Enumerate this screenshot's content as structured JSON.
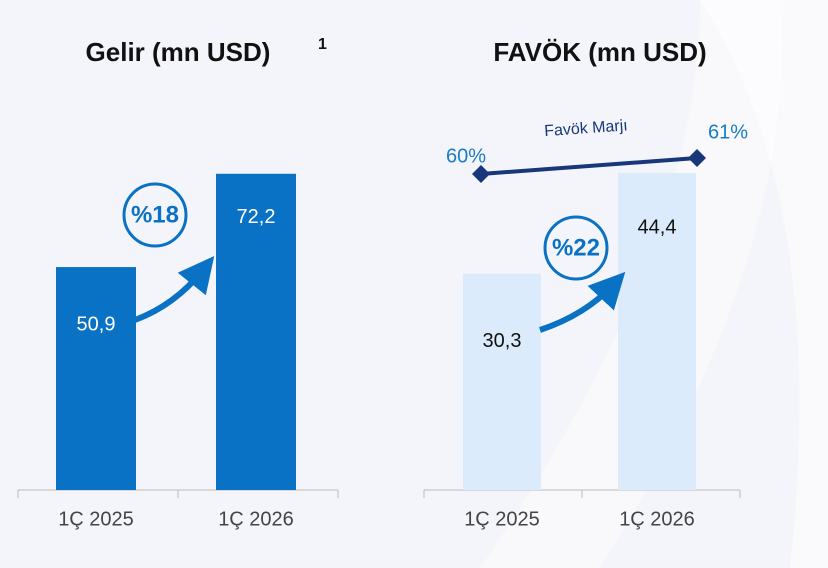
{
  "chart_data": [
    {
      "type": "bar",
      "title": "Gelir (mn USD)",
      "title_superscript": "1",
      "categories": [
        "1Ç 2025",
        "1Ç 2026"
      ],
      "values": [
        50.9,
        72.2
      ],
      "value_labels": [
        "50,9",
        "72,2"
      ],
      "color": "#0a72c4",
      "annotation": "%18"
    },
    {
      "type": "bar",
      "title": "FAVÖK (mn USD)",
      "categories": [
        "1Ç 2025",
        "1Ç 2026"
      ],
      "values": [
        30.3,
        44.4
      ],
      "value_labels": [
        "30,3",
        "44,4"
      ],
      "color": "#dcebfb",
      "annotation": "%22",
      "line": {
        "name": "Favök Marjı",
        "color": "#17377a",
        "values": [
          60,
          61
        ],
        "value_labels": [
          "60%",
          "61%"
        ]
      }
    }
  ]
}
